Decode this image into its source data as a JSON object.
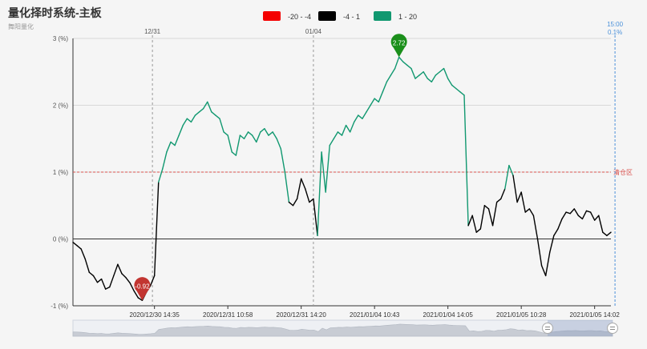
{
  "title": "量化择时系统-主板",
  "subtitle": "舞阳量化",
  "colors": {
    "red": "#f40000",
    "black": "#000000",
    "green": "#119870",
    "threshold": "#d9534f",
    "marker_low": "#c23531",
    "marker_high": "#1b8f1b",
    "cursor": "#4a90d9",
    "grid": "#d8d8d8",
    "axis": "#333333"
  },
  "chart_data": {
    "type": "line",
    "title": "",
    "xlabel": "",
    "ylabel": "",
    "legend": {
      "position": "top-center",
      "items": [
        {
          "label": "-20 - -4",
          "color": "#f40000"
        },
        {
          "label": "-4 - 1",
          "color": "#000000"
        },
        {
          "label": "1 - 20",
          "color": "#119870"
        }
      ]
    },
    "ylim": [
      -1,
      3
    ],
    "y_ticks": [
      {
        "value": -1,
        "label": "-1 (%)"
      },
      {
        "value": 0,
        "label": "0 (%)"
      },
      {
        "value": 1,
        "label": "1 (%)"
      },
      {
        "value": 2,
        "label": "2 (%)"
      },
      {
        "value": 3,
        "label": "3 (%)"
      }
    ],
    "x_ticks": [
      {
        "label": "2020/12/30 14:35",
        "index": 20
      },
      {
        "label": "2020/12/31 10:58",
        "index": 38
      },
      {
        "label": "2020/12/31 14:20",
        "index": 56
      },
      {
        "label": "2021/01/04 10:43",
        "index": 74
      },
      {
        "label": "2021/01/04 14:05",
        "index": 92
      },
      {
        "label": "2021/01/05 10:28",
        "index": 110
      },
      {
        "label": "2021/01/05 14:02",
        "index": 128
      }
    ],
    "day_separators": [
      {
        "label": "12/31",
        "index": 19.5
      },
      {
        "label": "01/04",
        "index": 59
      }
    ],
    "cursor": {
      "time": "15:00",
      "value": "0.1%",
      "index": 133
    },
    "threshold": {
      "value": 1,
      "label": "清仓区"
    },
    "markers": [
      {
        "label": "-0.92",
        "value": -0.92,
        "index": 17,
        "kind": "min"
      },
      {
        "label": "2.72",
        "value": 2.72,
        "index": 80,
        "kind": "max"
      }
    ],
    "series": [
      {
        "values": [
          -0.05,
          -0.1,
          -0.15,
          -0.3,
          -0.5,
          -0.55,
          -0.65,
          -0.6,
          -0.75,
          -0.72,
          -0.55,
          -0.38,
          -0.52,
          -0.58,
          -0.66,
          -0.78,
          -0.88,
          -0.92,
          -0.8,
          -0.7,
          -0.55,
          0.85,
          1.05,
          1.3,
          1.45,
          1.4,
          1.55,
          1.7,
          1.8,
          1.75,
          1.85,
          1.9,
          1.95,
          2.05,
          1.9,
          1.85,
          1.8,
          1.6,
          1.55,
          1.3,
          1.25,
          1.55,
          1.5,
          1.6,
          1.55,
          1.45,
          1.6,
          1.65,
          1.55,
          1.6,
          1.5,
          1.35,
          1.0,
          0.55,
          0.5,
          0.6,
          0.9,
          0.75,
          0.55,
          0.6,
          0.05,
          1.3,
          0.7,
          1.4,
          1.5,
          1.6,
          1.55,
          1.7,
          1.6,
          1.75,
          1.85,
          1.8,
          1.9,
          2.0,
          2.1,
          2.05,
          2.2,
          2.35,
          2.45,
          2.55,
          2.72,
          2.65,
          2.6,
          2.55,
          2.4,
          2.45,
          2.5,
          2.4,
          2.35,
          2.45,
          2.5,
          2.55,
          2.4,
          2.3,
          2.25,
          2.2,
          2.15,
          0.2,
          0.35,
          0.1,
          0.15,
          0.5,
          0.45,
          0.2,
          0.55,
          0.6,
          0.75,
          1.1,
          0.95,
          0.55,
          0.7,
          0.4,
          0.45,
          0.35,
          0.0,
          -0.4,
          -0.55,
          -0.2,
          0.05,
          0.15,
          0.3,
          0.4,
          0.38,
          0.45,
          0.35,
          0.3,
          0.42,
          0.4,
          0.28,
          0.35,
          0.1,
          0.05,
          0.1
        ]
      }
    ]
  }
}
